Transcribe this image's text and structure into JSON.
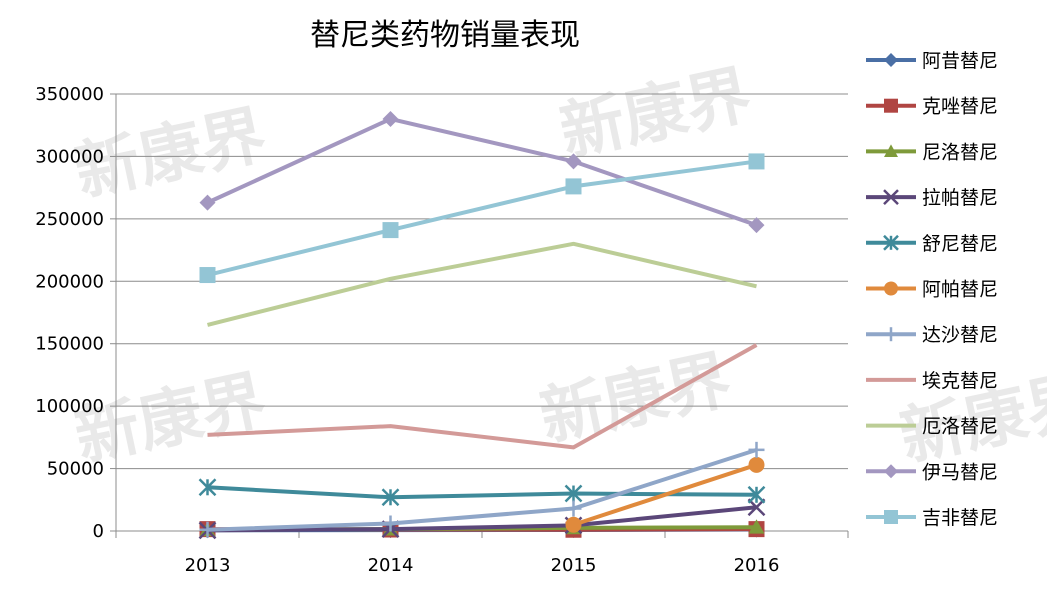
{
  "chart_data": {
    "type": "line",
    "title": "替尼类药物销量表现",
    "xlabel": "",
    "ylabel": "",
    "categories": [
      "2013",
      "2014",
      "2015",
      "2016"
    ],
    "ylim": [
      0,
      350000
    ],
    "yticks": [
      0,
      50000,
      100000,
      150000,
      200000,
      250000,
      300000,
      350000
    ],
    "grid": "horizontal",
    "legend_placement": "right",
    "series": [
      {
        "name": "阿昔替尼",
        "values": [
          600,
          700,
          800,
          1200
        ],
        "color": "#4a6fa5",
        "marker": "diamond"
      },
      {
        "name": "克唑替尼",
        "values": [
          1500,
          1200,
          1000,
          1500
        ],
        "color": "#b04542",
        "marker": "square"
      },
      {
        "name": "尼洛替尼",
        "values": [
          1000,
          1500,
          2500,
          3000
        ],
        "color": "#7e9a3a",
        "marker": "triangle"
      },
      {
        "name": "拉帕替尼",
        "values": [
          500,
          1500,
          4500,
          19000
        ],
        "color": "#5b4779",
        "marker": "x"
      },
      {
        "name": "舒尼替尼",
        "values": [
          35000,
          27000,
          30000,
          29000
        ],
        "color": "#3f8a9a",
        "marker": "asterisk"
      },
      {
        "name": "阿帕替尼",
        "values": [
          null,
          null,
          5000,
          53000
        ],
        "color": "#e08a3c",
        "marker": "circle"
      },
      {
        "name": "达沙替尼",
        "values": [
          1000,
          6000,
          18000,
          65000
        ],
        "color": "#8fa6c8",
        "marker": "plus"
      },
      {
        "name": "埃克替尼",
        "values": [
          77000,
          84000,
          67000,
          149000
        ],
        "color": "#d39a98",
        "marker": "none"
      },
      {
        "name": "厄洛替尼",
        "values": [
          165000,
          202000,
          230000,
          196000
        ],
        "color": "#bccd96",
        "marker": "none"
      },
      {
        "name": "伊马替尼",
        "values": [
          263000,
          330000,
          296000,
          245000
        ],
        "color": "#a397c0",
        "marker": "diamond"
      },
      {
        "name": "吉非替尼",
        "values": [
          205000,
          241000,
          276000,
          296000
        ],
        "color": "#93c5d5",
        "marker": "square"
      }
    ]
  },
  "watermark": "新康界"
}
